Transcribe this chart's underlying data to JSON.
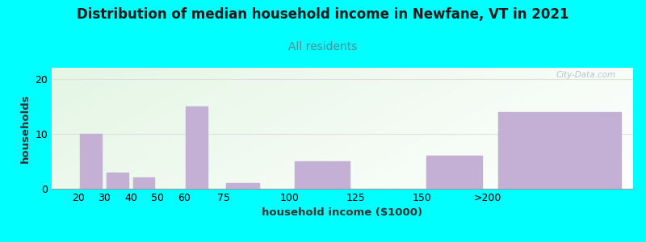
{
  "title": "Distribution of median household income in Newfane, VT in 2021",
  "subtitle": "All residents",
  "xlabel": "household income ($1000)",
  "ylabel": "households",
  "title_fontsize": 12,
  "subtitle_fontsize": 10,
  "label_fontsize": 9.5,
  "tick_fontsize": 9,
  "background_color": "#00FFFF",
  "plot_bg_top_left": "#d4edda",
  "plot_bg_top_right": "#f0f0f8",
  "plot_bg_bottom": "#f8f8ff",
  "bar_color": "#c5b0d5",
  "bar_edge_color": "#c5b0d5",
  "subtitle_color": "#4a9090",
  "title_color": "#1a1a1a",
  "watermark": "City-Data.com",
  "watermark_color": "#b0b8c8",
  "grid_color": "#e0e0e0",
  "bar_positions": [
    20,
    30,
    40,
    50,
    60,
    75,
    100,
    125,
    150,
    175
  ],
  "bar_widths": [
    10,
    10,
    10,
    10,
    10,
    15,
    25,
    25,
    25,
    55
  ],
  "values": [
    10,
    3,
    2,
    0,
    15,
    1,
    5,
    0,
    6,
    14
  ],
  "xtick_positions": [
    20,
    30,
    40,
    50,
    60,
    75,
    100,
    125,
    150,
    175
  ],
  "xtick_labels": [
    "20",
    "30",
    "40",
    "50",
    "60",
    "75",
    "100",
    "125",
    "150",
    ">200"
  ],
  "xlim": [
    10,
    230
  ],
  "ylim": [
    0,
    22
  ],
  "yticks": [
    0,
    10,
    20
  ]
}
